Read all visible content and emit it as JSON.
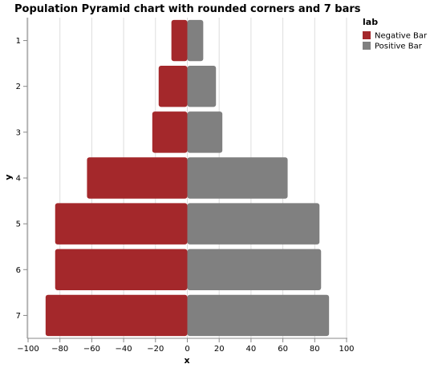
{
  "chart_data": {
    "type": "bar",
    "orientation": "horizontal",
    "title": "Population Pyramid chart with rounded corners and 7 bars",
    "xlabel": "x",
    "ylabel": "y",
    "xlim": [
      -100,
      100
    ],
    "x_ticks": [
      "−100",
      "−80",
      "−60",
      "−40",
      "−20",
      "0",
      "20",
      "40",
      "60",
      "80",
      "100"
    ],
    "categories": [
      "1",
      "2",
      "3",
      "4",
      "5",
      "6",
      "7"
    ],
    "legend_title": "lab",
    "legend_position": "top-right",
    "grid": true,
    "series": [
      {
        "name": "Negative Bar",
        "color": "#a4282b",
        "values": [
          -10,
          -18,
          -22,
          -63,
          -83,
          -83,
          -89
        ]
      },
      {
        "name": "Positive Bar",
        "color": "#808080",
        "values": [
          10,
          18,
          22,
          63,
          83,
          84,
          89
        ]
      }
    ]
  }
}
